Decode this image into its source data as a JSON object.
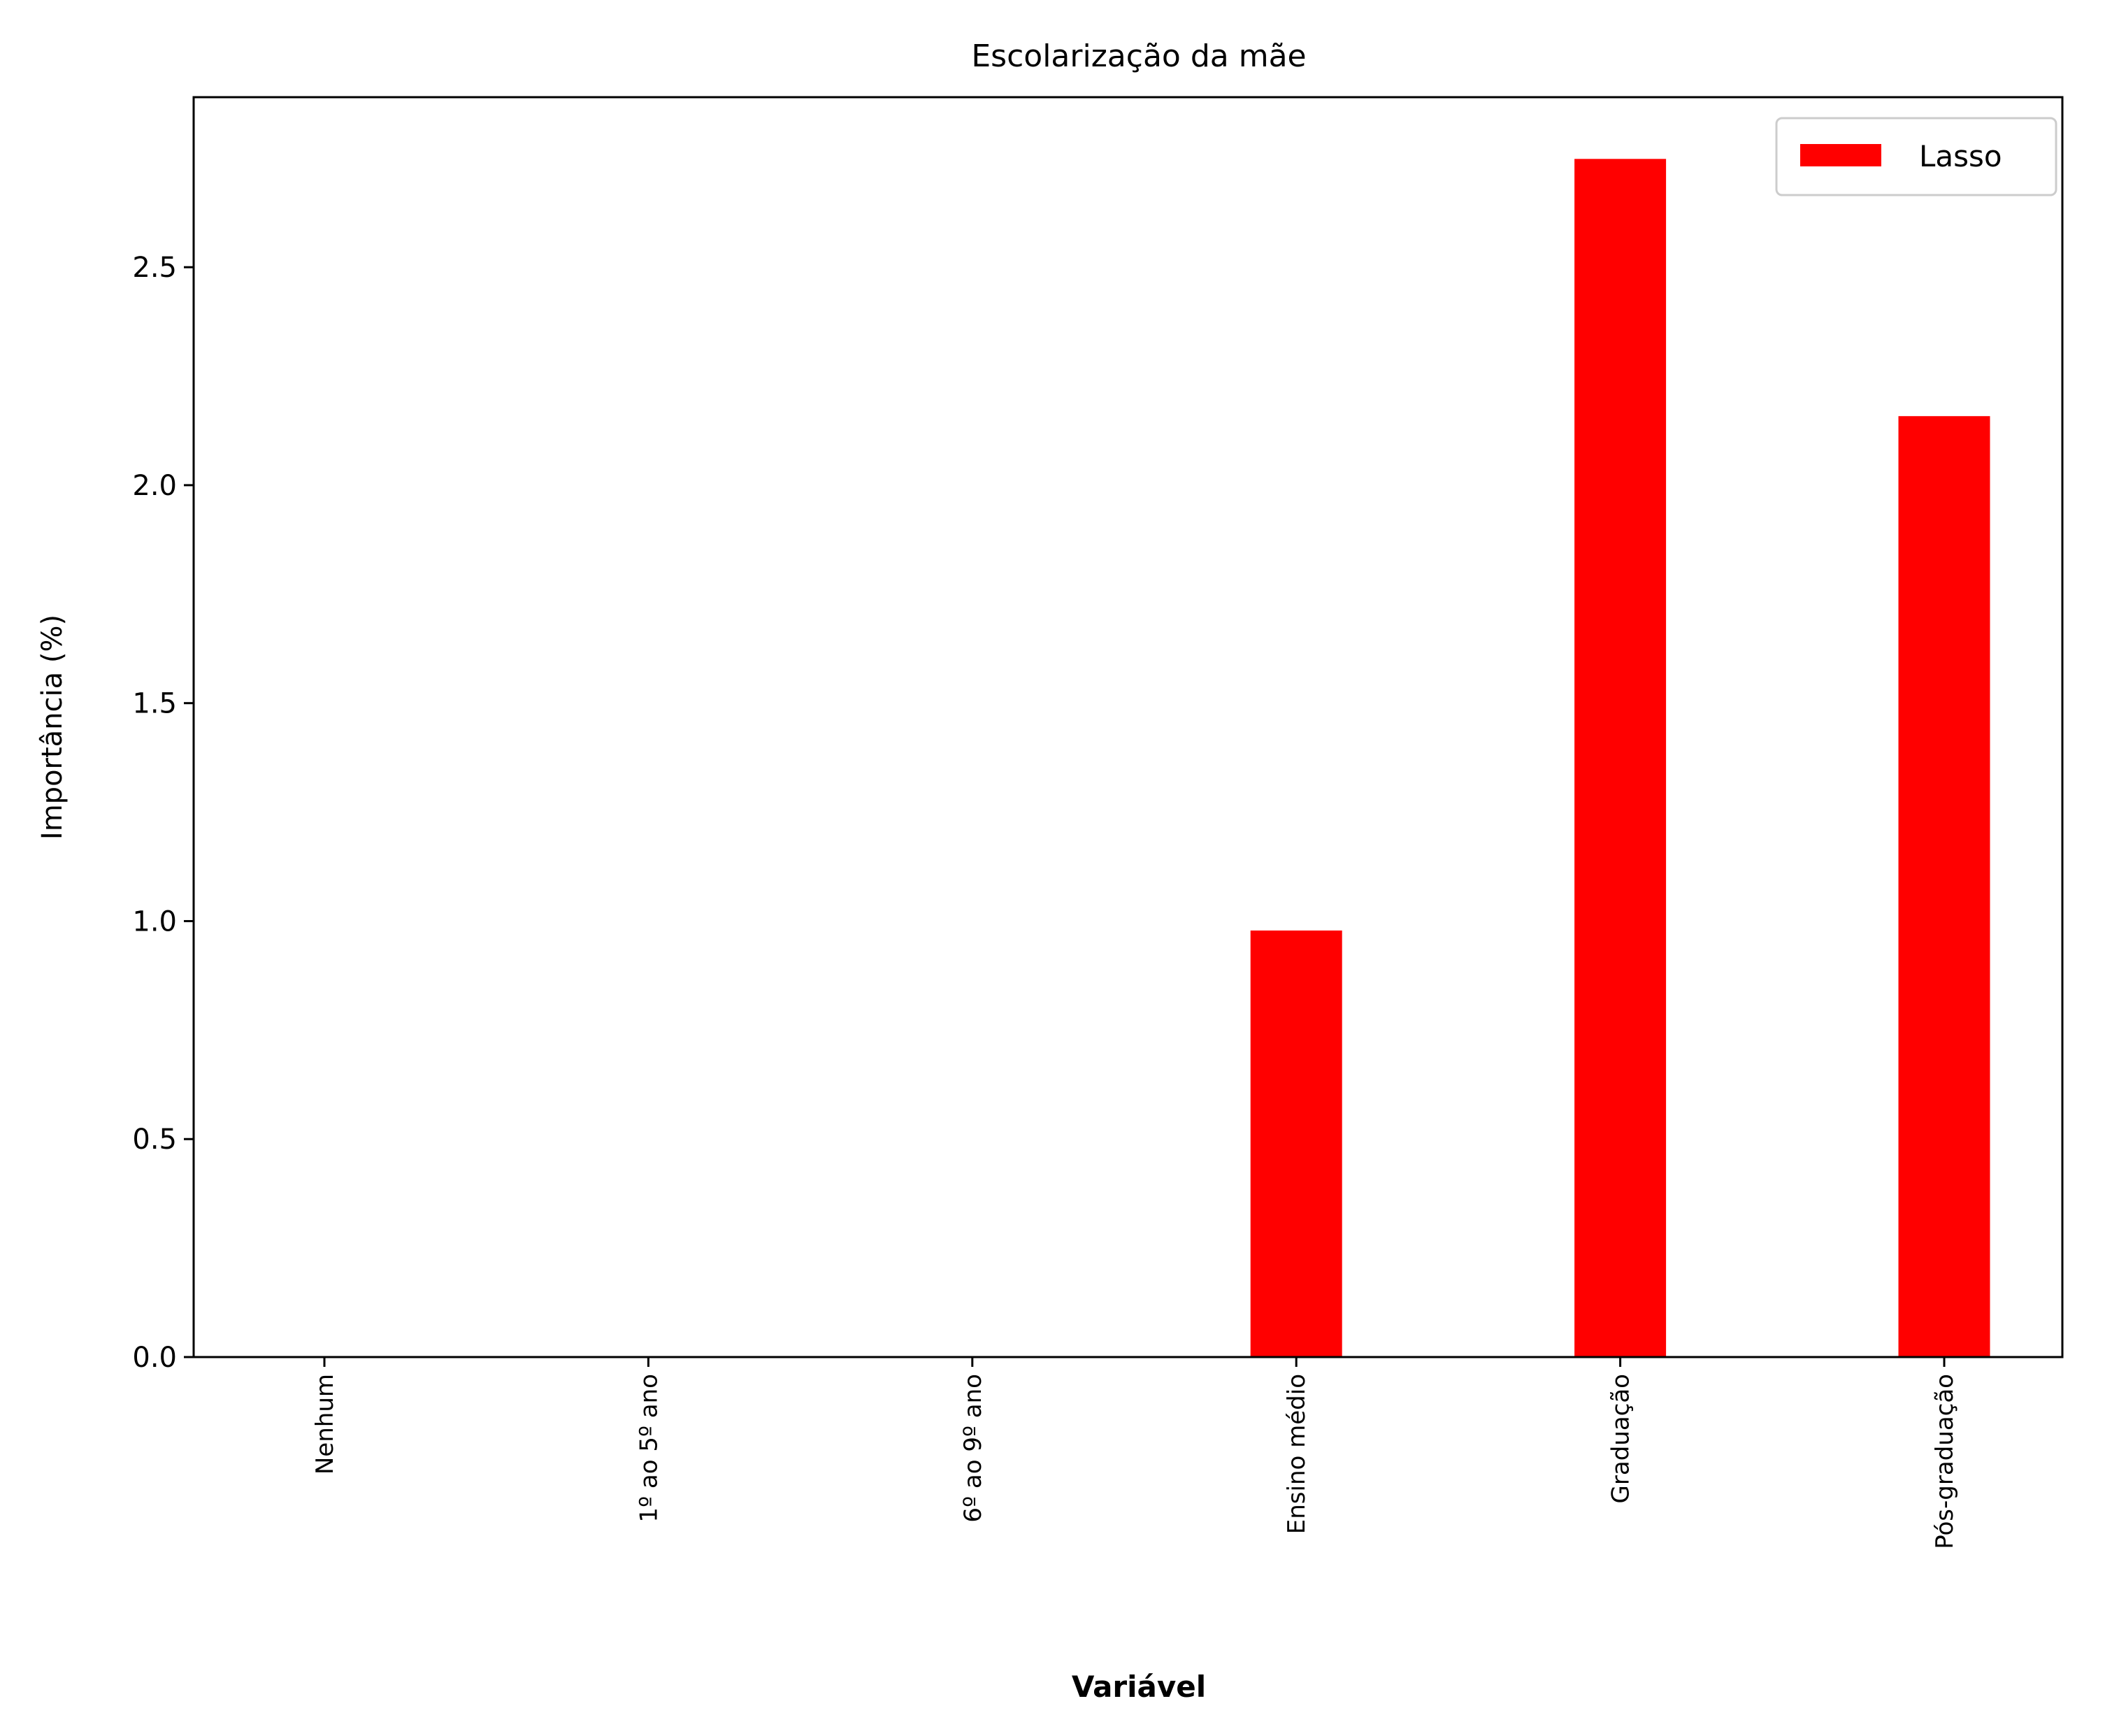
{
  "chart_data": {
    "type": "bar",
    "title": "Escolarização da mãe",
    "xlabel": "Variável",
    "ylabel": "Importância (%)",
    "categories": [
      "Nenhum",
      "1º ao 5º ano",
      "6º ao 9º ano",
      "Ensino médio",
      "Graduação",
      "Pós-graduação"
    ],
    "series": [
      {
        "name": "Lasso",
        "color": "#ff0000",
        "values": [
          0,
          0,
          0,
          0.98,
          2.75,
          2.16
        ]
      }
    ],
    "ylim": [
      0,
      2.89
    ],
    "yticks": [
      0.0,
      0.5,
      1.0,
      1.5,
      2.0,
      2.5
    ],
    "ytick_labels": [
      "0.0",
      "0.5",
      "1.0",
      "1.5",
      "2.0",
      "2.5"
    ],
    "grid": false,
    "legend_position": "top-right"
  }
}
